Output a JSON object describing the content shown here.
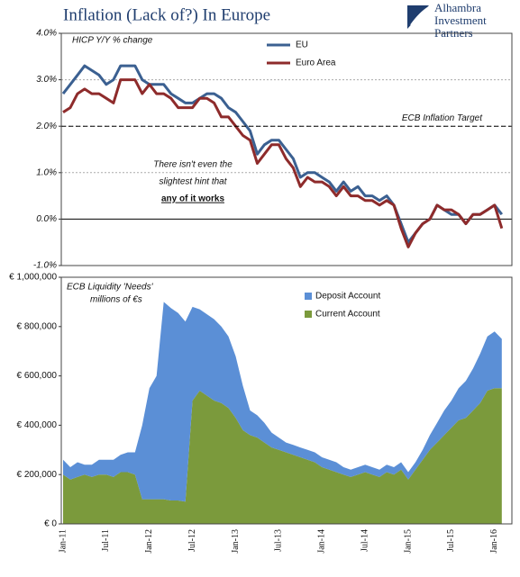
{
  "chart_data": [
    {
      "type": "line",
      "title": "Inflation (Lack of?) In Europe",
      "logo": [
        "Alhambra",
        "Investment",
        "Partners"
      ],
      "subtitle": "HICP Y/Y % change",
      "categories": [
        null,
        null,
        null,
        null,
        null,
        null,
        null,
        null,
        null,
        null,
        null,
        null,
        null,
        null,
        null,
        null,
        null,
        null,
        null,
        null,
        null,
        null,
        null,
        null,
        null,
        null,
        null,
        null,
        null,
        null,
        null,
        null,
        null,
        null,
        null,
        null,
        null,
        null,
        null,
        null,
        null,
        null,
        null,
        null,
        null,
        null,
        null,
        null,
        null,
        null,
        null,
        null,
        null,
        null,
        null,
        null,
        null,
        null,
        null,
        null,
        null,
        null
      ],
      "series": [
        {
          "name": "EU",
          "color": "#3b6091",
          "values": [
            2.7,
            2.9,
            3.1,
            3.3,
            3.2,
            3.1,
            2.9,
            3.0,
            3.3,
            3.3,
            3.3,
            3.0,
            2.9,
            2.9,
            2.9,
            2.7,
            2.6,
            2.5,
            2.5,
            2.6,
            2.7,
            2.7,
            2.6,
            2.4,
            2.3,
            2.1,
            1.9,
            1.4,
            1.6,
            1.7,
            1.7,
            1.5,
            1.3,
            0.9,
            1.0,
            1.0,
            0.9,
            0.8,
            0.6,
            0.8,
            0.6,
            0.7,
            0.5,
            0.5,
            0.4,
            0.5,
            0.3,
            -0.1,
            -0.5,
            -0.3,
            -0.1,
            0.0,
            0.3,
            0.2,
            0.1,
            0.1,
            -0.1,
            0.1,
            0.1,
            0.2,
            0.3,
            0.1
          ]
        },
        {
          "name": "Euro Area",
          "color": "#8e2b2b",
          "values": [
            2.3,
            2.4,
            2.7,
            2.8,
            2.7,
            2.7,
            2.6,
            2.5,
            3.0,
            3.0,
            3.0,
            2.7,
            2.9,
            2.7,
            2.7,
            2.6,
            2.4,
            2.4,
            2.4,
            2.6,
            2.6,
            2.5,
            2.2,
            2.2,
            2.0,
            1.8,
            1.7,
            1.2,
            1.4,
            1.6,
            1.6,
            1.3,
            1.1,
            0.7,
            0.9,
            0.8,
            0.8,
            0.7,
            0.5,
            0.7,
            0.5,
            0.5,
            0.4,
            0.4,
            0.3,
            0.4,
            0.3,
            -0.2,
            -0.6,
            -0.3,
            -0.1,
            0.0,
            0.3,
            0.2,
            0.2,
            0.1,
            -0.1,
            0.1,
            0.1,
            0.2,
            0.3,
            -0.2
          ]
        }
      ],
      "ylim": [
        -1,
        4
      ],
      "yticks": [
        {
          "value": -1,
          "label": "-1.0%"
        },
        {
          "value": 0,
          "label": "0.0%"
        },
        {
          "value": 1,
          "label": "1.0%"
        },
        {
          "value": 2,
          "label": "2.0%"
        },
        {
          "value": 3,
          "label": "3.0%"
        },
        {
          "value": 4,
          "label": "4.0%"
        }
      ],
      "grid": true,
      "reference_line": {
        "value": 2,
        "label": "ECB Inflation Target"
      },
      "annotations": [
        "There isn't even the",
        "slightest hint that",
        "any of it works"
      ]
    },
    {
      "type": "area",
      "stacked": true,
      "categories": [
        "Jan-11",
        null,
        null,
        null,
        null,
        null,
        "Jul-11",
        null,
        null,
        null,
        null,
        null,
        "Jan-12",
        null,
        null,
        null,
        null,
        null,
        "Jul-12",
        null,
        null,
        null,
        null,
        null,
        "Jan-13",
        null,
        null,
        null,
        null,
        null,
        "Jul-13",
        null,
        null,
        null,
        null,
        null,
        "Jan-14",
        null,
        null,
        null,
        null,
        null,
        "Jul-14",
        null,
        null,
        null,
        null,
        null,
        "Jan-15",
        null,
        null,
        null,
        null,
        null,
        "Jul-15",
        null,
        null,
        null,
        null,
        null,
        "Jan-16",
        null
      ],
      "series": [
        {
          "name": "Current Account",
          "color": "#7b9a3c",
          "values": [
            200000,
            180000,
            190000,
            200000,
            190000,
            200000,
            200000,
            190000,
            210000,
            210000,
            200000,
            100000,
            100000,
            100000,
            100000,
            95000,
            95000,
            90000,
            500000,
            540000,
            520000,
            500000,
            490000,
            470000,
            430000,
            380000,
            360000,
            350000,
            330000,
            310000,
            300000,
            290000,
            280000,
            270000,
            260000,
            250000,
            230000,
            220000,
            210000,
            200000,
            190000,
            200000,
            210000,
            200000,
            190000,
            210000,
            200000,
            220000,
            180000,
            220000,
            260000,
            300000,
            330000,
            360000,
            390000,
            420000,
            430000,
            460000,
            490000,
            540000,
            550000,
            550000
          ]
        },
        {
          "name": "Deposit Account",
          "color": "#5b8fd6",
          "values": [
            60000,
            50000,
            60000,
            40000,
            50000,
            60000,
            60000,
            70000,
            70000,
            80000,
            90000,
            300000,
            450000,
            500000,
            800000,
            780000,
            760000,
            730000,
            380000,
            330000,
            330000,
            330000,
            310000,
            290000,
            250000,
            180000,
            100000,
            90000,
            80000,
            60000,
            50000,
            40000,
            40000,
            40000,
            40000,
            40000,
            40000,
            40000,
            40000,
            30000,
            30000,
            30000,
            30000,
            30000,
            30000,
            30000,
            30000,
            30000,
            30000,
            30000,
            40000,
            60000,
            80000,
            100000,
            110000,
            130000,
            150000,
            170000,
            200000,
            220000,
            230000,
            200000
          ]
        }
      ],
      "ylim": [
        0,
        1000000
      ],
      "yticks": [
        {
          "value": 0,
          "label": "€ 0"
        },
        {
          "value": 200000,
          "label": "€ 200,000"
        },
        {
          "value": 400000,
          "label": "€ 400,000"
        },
        {
          "value": 600000,
          "label": "€ 600,000"
        },
        {
          "value": 800000,
          "label": "€ 800,000"
        },
        {
          "value": 1000000,
          "label": "€ 1,000,000"
        }
      ],
      "grid": false,
      "annotations": [
        "ECB Liquidity 'Needs'",
        "millions of €s"
      ]
    }
  ]
}
